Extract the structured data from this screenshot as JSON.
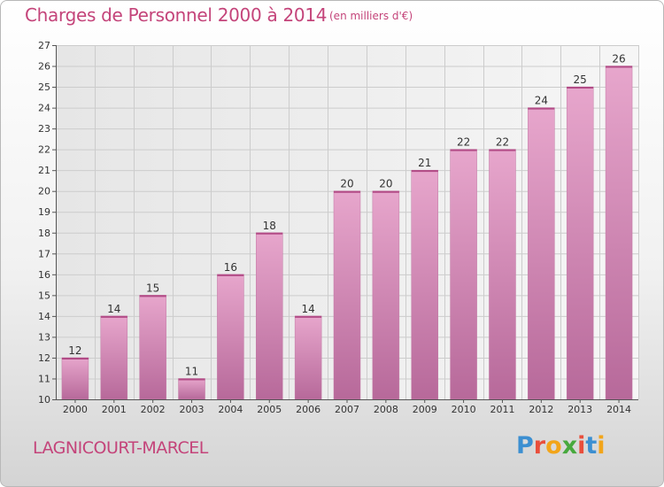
{
  "chart_data": {
    "type": "bar",
    "title": "Charges de Personnel 2000 à 2014",
    "subtitle": "(en milliers d'€)",
    "categories": [
      "2000",
      "2001",
      "2002",
      "2003",
      "2004",
      "2005",
      "2006",
      "2007",
      "2008",
      "2009",
      "2010",
      "2011",
      "2012",
      "2013",
      "2014"
    ],
    "values": [
      12,
      14,
      15,
      11,
      16,
      18,
      14,
      20,
      20,
      21,
      22,
      22,
      24,
      25,
      26
    ],
    "ylim": [
      10,
      27
    ],
    "yticks": [
      10,
      11,
      12,
      13,
      14,
      15,
      16,
      17,
      18,
      19,
      20,
      21,
      22,
      23,
      24,
      25,
      26,
      27
    ],
    "grid": true,
    "bar_color": "#d98ab5"
  },
  "footer": {
    "town": "LAGNICOURT-MARCEL",
    "logo_letters": [
      "P",
      "r",
      "o",
      "x",
      "i",
      "t",
      "i"
    ],
    "logo_colors": [
      "#3c8fd1",
      "#e94e3b",
      "#f2a51a",
      "#47a93d",
      "#e94e3b",
      "#3c8fd1",
      "#f2a51a"
    ]
  },
  "colors": {
    "title": "#c4447a",
    "grid": "#cccccc",
    "axis": "#555555"
  }
}
